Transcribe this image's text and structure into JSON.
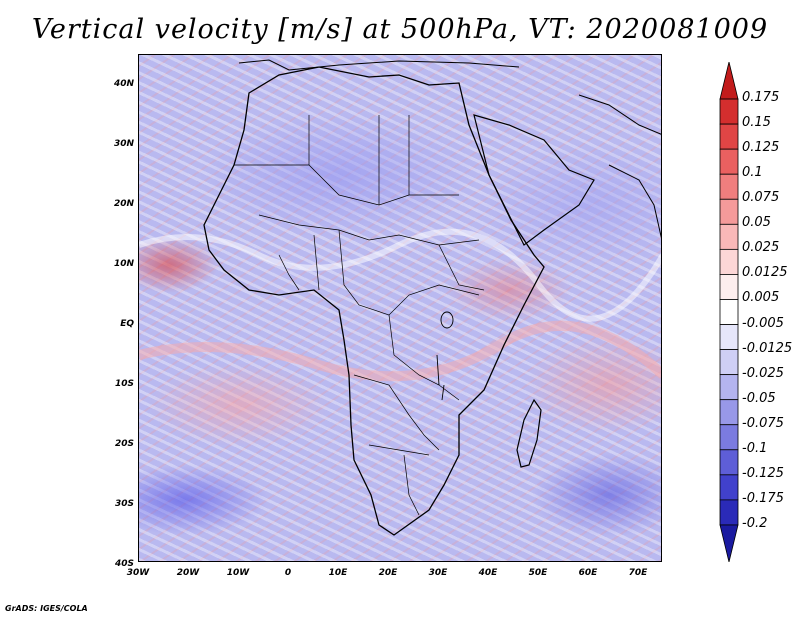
{
  "title": "Vertical velocity [m/s] at 500hPa, VT: 2020081009",
  "lat_labels": [
    "40N",
    "30N",
    "20N",
    "10N",
    "EQ",
    "10S",
    "20S",
    "30S",
    "40S"
  ],
  "lon_labels": [
    "30W",
    "20W",
    "10W",
    "0",
    "10E",
    "20E",
    "30E",
    "40E",
    "50E",
    "60E",
    "70E"
  ],
  "colorbar": {
    "labels": [
      "0.175",
      "0.15",
      "0.125",
      "0.1",
      "0.075",
      "0.05",
      "0.025",
      "0.0125",
      "0.005",
      "-0.005",
      "-0.0125",
      "-0.025",
      "-0.05",
      "-0.075",
      "-0.1",
      "-0.125",
      "-0.175",
      "-0.2"
    ],
    "colors": [
      "#c21b1b",
      "#d42e2e",
      "#e04545",
      "#ea6060",
      "#f07e7e",
      "#f59a9a",
      "#f9b8b8",
      "#fcd6d6",
      "#fdeeee",
      "#ffffff",
      "#e6e6fa",
      "#cfcff5",
      "#b4b4ef",
      "#9898e8",
      "#7b7be0",
      "#5e5ed7",
      "#4141cc",
      "#2a2ab8",
      "#1a1aa0"
    ]
  },
  "credit": "GrADS: IGES/COLA"
}
